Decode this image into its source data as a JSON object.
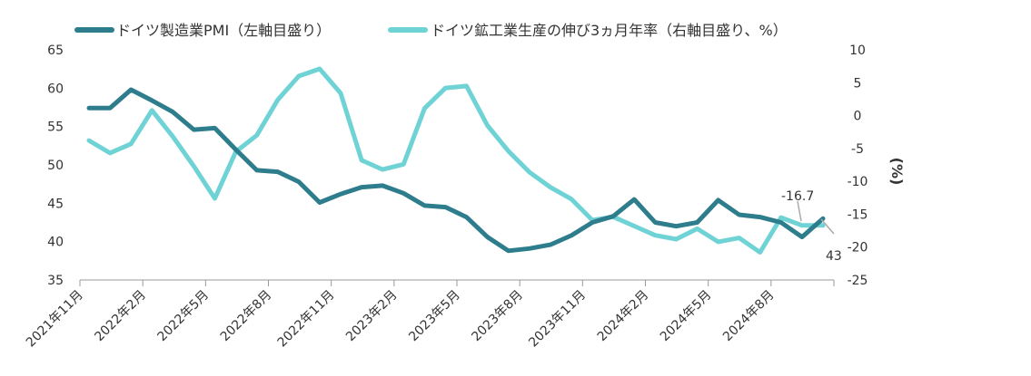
{
  "chart_data": {
    "type": "line",
    "legend_position": "top",
    "grid": false,
    "series": [
      {
        "name": "ドイツ製造業PMI（左軸目盛り）",
        "axis": "left",
        "color": "#2e7d8c",
        "values": [
          57.4,
          57.4,
          59.8,
          58.4,
          56.9,
          54.6,
          54.8,
          52.0,
          49.3,
          49.1,
          47.8,
          45.1,
          46.2,
          47.1,
          47.3,
          46.3,
          44.7,
          44.5,
          43.2,
          40.6,
          38.8,
          39.1,
          39.6,
          40.8,
          42.5,
          43.3,
          45.5,
          42.5,
          42.0,
          42.5,
          45.4,
          43.5,
          43.2,
          42.5,
          40.6,
          43.0
        ]
      },
      {
        "name": "ドイツ鉱工業生産の伸び3ヵ月年率（右軸目盛り、%）",
        "axis": "right",
        "color": "#6fd3d6",
        "values": [
          -3.8,
          -5.7,
          -4.3,
          0.8,
          -3.2,
          -7.7,
          -12.6,
          -5.5,
          -3.0,
          2.4,
          6.0,
          7.1,
          3.4,
          -6.8,
          -8.2,
          -7.4,
          1.1,
          4.2,
          4.5,
          -1.5,
          -5.4,
          -8.6,
          -10.9,
          -12.7,
          -15.9,
          -15.4,
          -16.8,
          -18.2,
          -18.8,
          -17.2,
          -19.2,
          -18.6,
          -20.8,
          -15.5,
          -16.7,
          -16.7
        ]
      }
    ],
    "x_tick_labels": [
      "2021年11月",
      "2022年2月",
      "2022年5月",
      "2022年8月",
      "2022年11月",
      "2023年2月",
      "2023年5月",
      "2023年8月",
      "2023年11月",
      "2024年2月",
      "2024年5月",
      "2024年8月"
    ],
    "y_left": {
      "ylim": [
        35,
        65
      ],
      "ticks": [
        "65",
        "60",
        "55",
        "50",
        "45",
        "40",
        "35"
      ]
    },
    "y_right": {
      "ylim": [
        -25,
        10
      ],
      "ticks": [
        "10",
        "5",
        "0",
        "-5",
        "-10",
        "-15",
        "-20",
        "-25"
      ],
      "label": "(%)"
    },
    "annotations": {
      "pmi_last": "43",
      "ip_last": "-16.7"
    },
    "colors": {
      "axis": "#999999",
      "callout": "#aaaaaa"
    }
  }
}
